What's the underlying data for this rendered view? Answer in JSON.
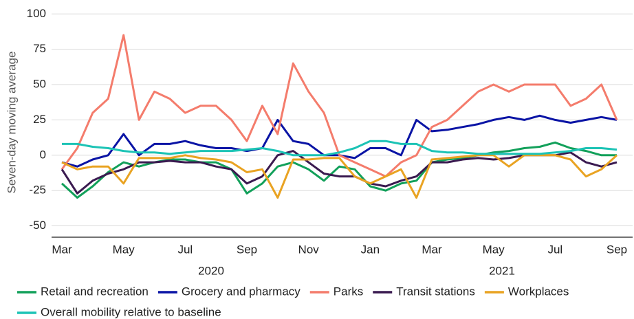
{
  "chart_data": {
    "type": "line",
    "y_label": "Seven-day moving average",
    "categories": [
      "Mar",
      null,
      null,
      null,
      "May",
      null,
      null,
      null,
      "Jul",
      null,
      null,
      null,
      "Sep",
      null,
      null,
      null,
      "Nov",
      null,
      null,
      null,
      "Jan",
      null,
      null,
      null,
      "Mar",
      null,
      null,
      null,
      "May",
      null,
      null,
      null,
      "Jul",
      null,
      null,
      null,
      "Sep"
    ],
    "x_group_labels": [
      "2020",
      "2021"
    ],
    "ylim": [
      -58,
      105
    ],
    "yticks": [
      -50,
      -25,
      0,
      25,
      50,
      75,
      100
    ],
    "grid": true,
    "series": [
      {
        "name": "Retail and recreation",
        "color": "#12a05a",
        "values": [
          -20,
          -30,
          -22,
          -12,
          -5,
          -8,
          -5,
          -3,
          -3,
          -5,
          -5,
          -10,
          -27,
          -20,
          -8,
          -5,
          -10,
          -18,
          -8,
          -10,
          -22,
          -25,
          -20,
          -18,
          -5,
          -3,
          -2,
          0,
          2,
          3,
          5,
          6,
          9,
          5,
          3,
          0,
          0
        ]
      },
      {
        "name": "Grocery and pharmacy",
        "color": "#0a14a5",
        "values": [
          -5,
          -8,
          -3,
          0,
          15,
          0,
          8,
          8,
          10,
          7,
          5,
          5,
          3,
          5,
          25,
          10,
          8,
          0,
          0,
          -2,
          5,
          5,
          0,
          25,
          17,
          18,
          20,
          22,
          25,
          27,
          25,
          28,
          25,
          23,
          25,
          27,
          25
        ]
      },
      {
        "name": "Parks",
        "color": "#f47c6c",
        "values": [
          -10,
          5,
          30,
          40,
          85,
          25,
          45,
          40,
          30,
          35,
          35,
          25,
          10,
          35,
          15,
          65,
          45,
          30,
          0,
          -5,
          -10,
          -15,
          -5,
          0,
          20,
          25,
          35,
          45,
          50,
          45,
          50,
          50,
          50,
          35,
          40,
          50,
          25
        ]
      },
      {
        "name": "Transit stations",
        "color": "#3a1a50",
        "values": [
          -10,
          -27,
          -18,
          -13,
          -10,
          -5,
          -5,
          -4,
          -5,
          -5,
          -8,
          -10,
          -20,
          -15,
          0,
          3,
          -5,
          -13,
          -15,
          -15,
          -20,
          -22,
          -18,
          -15,
          -5,
          -5,
          -3,
          -2,
          -3,
          -2,
          0,
          0,
          0,
          2,
          -5,
          -8,
          -5
        ]
      },
      {
        "name": "Workplaces",
        "color": "#e9a322",
        "values": [
          -5,
          -10,
          -8,
          -8,
          -20,
          -2,
          -2,
          -2,
          0,
          -2,
          -3,
          -5,
          -12,
          -10,
          -30,
          -3,
          -3,
          -2,
          -2,
          -15,
          -20,
          -15,
          -10,
          -30,
          -3,
          -2,
          -1,
          0,
          0,
          -8,
          0,
          0,
          0,
          -3,
          -15,
          -10,
          0
        ]
      },
      {
        "name": "Overall mobility relative to baseline",
        "color": "#1cc3b5",
        "values": [
          8,
          8,
          6,
          5,
          3,
          2,
          2,
          1,
          2,
          3,
          3,
          3,
          4,
          5,
          3,
          0,
          0,
          0,
          2,
          5,
          10,
          10,
          8,
          8,
          3,
          2,
          2,
          1,
          1,
          1,
          1,
          1,
          2,
          3,
          5,
          5,
          4
        ]
      }
    ]
  }
}
